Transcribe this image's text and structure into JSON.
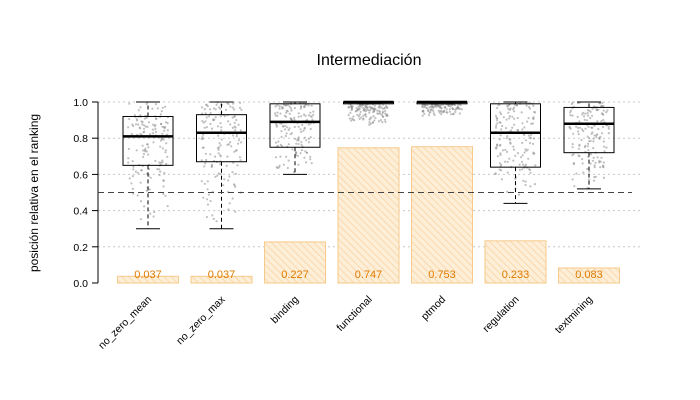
{
  "chart_data": {
    "type": "bar",
    "title": "Intermediación",
    "xlabel": "",
    "ylabel": "posición relativa en el ranking",
    "ylim": [
      0,
      1
    ],
    "yticks": [
      "0.0",
      "0.2",
      "0.4",
      "0.6",
      "0.8",
      "1.0"
    ],
    "grid": "horizontal dotted",
    "reference_line": 0.5,
    "categories": [
      "no_zero_mean",
      "no_zero_max",
      "binding",
      "functional",
      "ptmod",
      "regulation",
      "textmining"
    ],
    "bar_values": [
      0.037,
      0.037,
      0.227,
      0.747,
      0.753,
      0.233,
      0.083
    ],
    "bar_labels": [
      "0.037",
      "0.037",
      "0.227",
      "0.747",
      "0.753",
      "0.233",
      "0.083"
    ],
    "boxplots": [
      {
        "category": "no_zero_mean",
        "whisker_low": 0.3,
        "q1": 0.65,
        "median": 0.81,
        "q3": 0.92,
        "whisker_high": 1.0
      },
      {
        "category": "no_zero_max",
        "whisker_low": 0.3,
        "q1": 0.67,
        "median": 0.83,
        "q3": 0.93,
        "whisker_high": 1.0
      },
      {
        "category": "binding",
        "whisker_low": 0.6,
        "q1": 0.75,
        "median": 0.89,
        "q3": 0.99,
        "whisker_high": 1.0
      },
      {
        "category": "functional",
        "whisker_low": 0.99,
        "q1": 0.99,
        "median": 1.0,
        "q3": 1.0,
        "whisker_high": 1.0
      },
      {
        "category": "ptmod",
        "whisker_low": 0.99,
        "q1": 0.99,
        "median": 1.0,
        "q3": 1.0,
        "whisker_high": 1.0
      },
      {
        "category": "regulation",
        "whisker_low": 0.44,
        "q1": 0.64,
        "median": 0.83,
        "q3": 0.99,
        "whisker_high": 1.0
      },
      {
        "category": "textmining",
        "whisker_low": 0.52,
        "q1": 0.72,
        "median": 0.88,
        "q3": 0.97,
        "whisker_high": 1.0
      }
    ],
    "jitter_ranges": [
      [
        0.3,
        1.0
      ],
      [
        0.3,
        1.0
      ],
      [
        0.6,
        1.0
      ],
      [
        0.87,
        1.0
      ],
      [
        0.92,
        1.0
      ],
      [
        0.44,
        1.0
      ],
      [
        0.52,
        1.0
      ]
    ],
    "colors": {
      "bar_fill": "#fbe3c2",
      "bar_stroke": "#f7c98a",
      "bar_label": "#e07b00",
      "points": "#8c8c8c",
      "grid": "#c8c8c8"
    }
  }
}
